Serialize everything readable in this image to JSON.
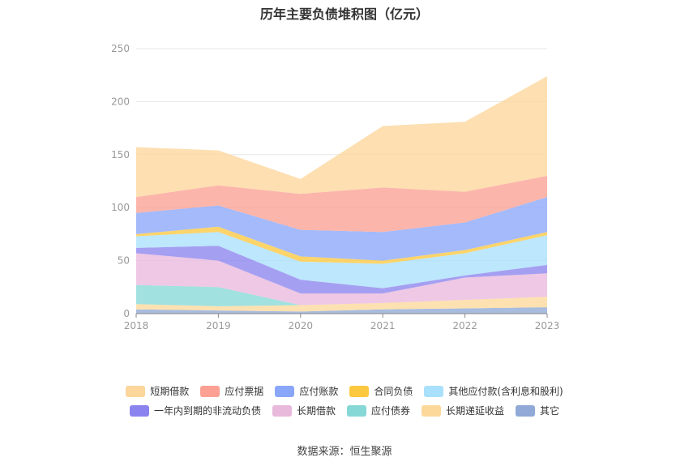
{
  "chart_data": {
    "type": "area",
    "stacked": true,
    "title": "历年主要负债堆积图（亿元）",
    "x": [
      "2018",
      "2019",
      "2020",
      "2021",
      "2022",
      "2023"
    ],
    "yticks": [
      "0",
      "50",
      "100",
      "150",
      "200",
      "250"
    ],
    "ylim": [
      0,
      250
    ],
    "grid": true,
    "legend_position": "bottom",
    "series": [
      {
        "name": "其它",
        "color": "#90a9d6",
        "values": [
          4,
          3,
          2,
          4,
          5,
          6
        ]
      },
      {
        "name": "长期递延收益",
        "color": "#fdd89b",
        "values": [
          5,
          4,
          6,
          6,
          8,
          10
        ]
      },
      {
        "name": "应付债券",
        "color": "#86d8d6",
        "values": [
          18,
          18,
          0,
          0,
          0,
          0
        ]
      },
      {
        "name": "长期借款",
        "color": "#e9b9dc",
        "values": [
          30,
          25,
          11,
          9,
          21,
          22
        ]
      },
      {
        "name": "一年内到期的非流动负债",
        "color": "#8c84ee",
        "values": [
          5,
          14,
          13,
          5,
          2,
          8
        ]
      },
      {
        "name": "其他应付款(含利息和股利)",
        "color": "#a9e0fb",
        "values": [
          11,
          13,
          17,
          23,
          21,
          28
        ]
      },
      {
        "name": "合同负债",
        "color": "#fbc840",
        "values": [
          2,
          5,
          5,
          3,
          3,
          3
        ]
      },
      {
        "name": "应付账款",
        "color": "#8aa6f8",
        "values": [
          20,
          20,
          25,
          27,
          26,
          33
        ]
      },
      {
        "name": "应付票据",
        "color": "#fba093",
        "values": [
          15,
          19,
          34,
          42,
          29,
          20
        ]
      },
      {
        "name": "短期借款",
        "color": "#fdd69b",
        "values": [
          47,
          33,
          14,
          58,
          66,
          94
        ]
      }
    ]
  },
  "legend_rows": [
    [
      {
        "label": "短期借款",
        "color": "#fdd69b"
      },
      {
        "label": "应付票据",
        "color": "#fba093"
      },
      {
        "label": "应付账款",
        "color": "#8aa6f8"
      },
      {
        "label": "合同负债",
        "color": "#fbc840"
      },
      {
        "label": "其他应付款(含利息和股利)",
        "color": "#a9e0fb"
      }
    ],
    [
      {
        "label": "一年内到期的非流动负债",
        "color": "#8c84ee"
      },
      {
        "label": "长期借款",
        "color": "#e9b9dc"
      },
      {
        "label": "应付债券",
        "color": "#86d8d6"
      },
      {
        "label": "长期递延收益",
        "color": "#fdd89b"
      },
      {
        "label": "其它",
        "color": "#90a9d6"
      }
    ]
  ],
  "source": "数据来源：恒生聚源"
}
